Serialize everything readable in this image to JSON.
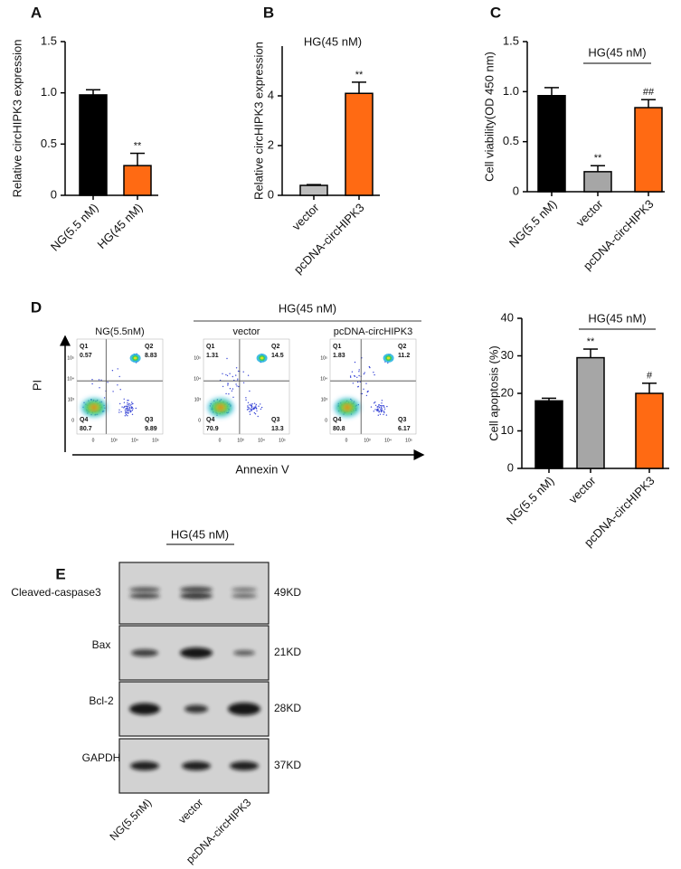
{
  "chart_data": [
    {
      "type": "bar",
      "panel_label": "A",
      "y_label": "Relative circHIPK3 expression",
      "categories": [
        "NG(5.5 nM)",
        "HG(45 nM)"
      ],
      "values": [
        0.98,
        0.29
      ],
      "errors": [
        0.05,
        0.12
      ],
      "colors": [
        "#000000",
        "#ff6a13"
      ],
      "annotations": [
        null,
        "**"
      ],
      "ylim": [
        0,
        1.5
      ],
      "yticks": [
        0,
        0.5,
        {
          "value": 1,
          "label": "1.0"
        },
        1.5
      ]
    },
    {
      "type": "bar",
      "panel_label": "B",
      "title": "HG(45 nM)",
      "y_label": "Relative circHIPK3 expression",
      "categories": [
        "vector",
        "pcDNA-circHIPK3"
      ],
      "values": [
        0.4,
        4.1
      ],
      "errors": [
        0.03,
        0.45
      ],
      "colors": [
        "#bdbdbd",
        "#ff6a13"
      ],
      "annotations": [
        null,
        "**"
      ],
      "ylim": [
        0,
        6
      ],
      "yticks": [
        0,
        2,
        4
      ]
    },
    {
      "type": "bar",
      "panel_label": "C",
      "bracket_label": "HG(45 nM)",
      "y_label": "Cell viability(OD 450 nm)",
      "categories": [
        "NG(5.5 nM)",
        "vector",
        "pcDNA-circHIPK3"
      ],
      "values": [
        0.96,
        0.2,
        0.84
      ],
      "errors": [
        0.08,
        0.06,
        0.08
      ],
      "colors": [
        "#000000",
        "#a6a6a6",
        "#ff6a13"
      ],
      "annotations": [
        null,
        "**",
        "##"
      ],
      "ylim": [
        0,
        1.5
      ],
      "yticks": [
        0,
        0.5,
        {
          "value": 1,
          "label": "1.0"
        },
        1.5
      ]
    },
    {
      "type": "bar",
      "bracket_label": "HG(45 nM)",
      "y_label": "Cell apoptosis (%)",
      "categories": [
        "NG(5.5 nM)",
        "vector",
        "pcDNA-circHIPK3"
      ],
      "values": [
        18,
        29.5,
        20
      ],
      "errors": [
        0.7,
        2.3,
        2.7
      ],
      "colors": [
        "#000000",
        "#a6a6a6",
        "#ff6a13"
      ],
      "annotations": [
        null,
        "**",
        "#"
      ],
      "ylim": [
        0,
        40
      ],
      "yticks": [
        0,
        10,
        20,
        30,
        40
      ]
    }
  ],
  "flow_cytometry": {
    "panel_label": "D",
    "bracket_label": "HG(45 nM)",
    "y_axis_label": "PI",
    "x_axis_label": "Annexin V",
    "axis_ticks": [
      "0",
      "10³",
      "10⁴",
      "10⁵"
    ],
    "plots": [
      {
        "title": "NG(5.5nM)",
        "quadrants": [
          {
            "name": "Q1",
            "value": "0.57"
          },
          {
            "name": "Q2",
            "value": "8.83"
          },
          {
            "name": "Q3",
            "value": "9.89"
          },
          {
            "name": "Q4",
            "value": "80.7"
          }
        ]
      },
      {
        "title": "vector",
        "quadrants": [
          {
            "name": "Q1",
            "value": "1.31"
          },
          {
            "name": "Q2",
            "value": "14.5"
          },
          {
            "name": "Q3",
            "value": "13.3"
          },
          {
            "name": "Q4",
            "value": "70.9"
          }
        ]
      },
      {
        "title": "pcDNA-circHIPK3",
        "quadrants": [
          {
            "name": "Q1",
            "value": "1.83"
          },
          {
            "name": "Q2",
            "value": "11.2"
          },
          {
            "name": "Q3",
            "value": "6.17"
          },
          {
            "name": "Q4",
            "value": "80.8"
          }
        ]
      }
    ]
  },
  "western_blot": {
    "panel_label": "E",
    "bracket_label": "HG(45 nM)",
    "rows": [
      {
        "protein": "Cleaved-caspase3",
        "size": "49KD"
      },
      {
        "protein": "Bax",
        "size": "21KD"
      },
      {
        "protein": "Bcl-2",
        "size": "28KD"
      },
      {
        "protein": "GAPDH",
        "size": "37KD"
      }
    ],
    "lanes": [
      "NG(5.5nM)",
      "vector",
      "pcDNA-circHIPK3"
    ]
  }
}
